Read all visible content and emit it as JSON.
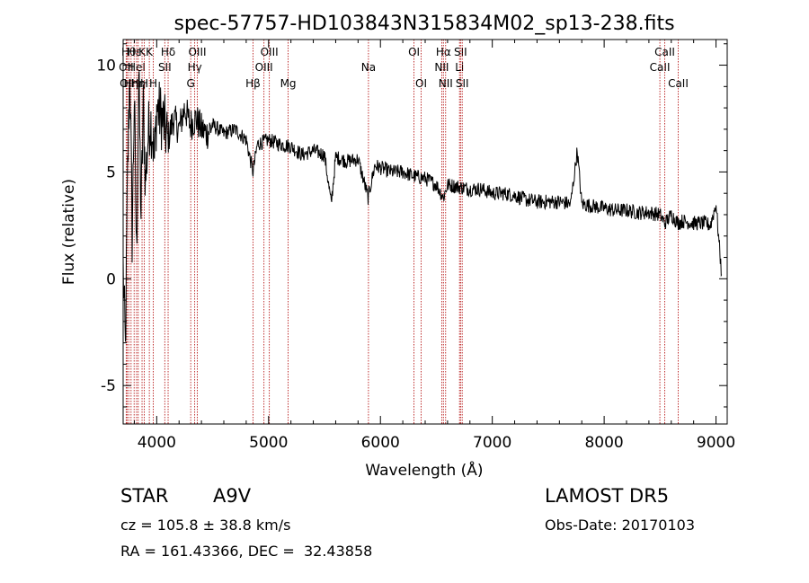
{
  "chart_data": {
    "type": "line",
    "title": "spec-57757-HD103843N315834M02_sp13-238.fits",
    "xlabel": "Wavelength (Å)",
    "ylabel": "Flux (relative)",
    "xlim": [
      3700,
      9100
    ],
    "ylim": [
      -6.8,
      11.2
    ],
    "xticks": [
      4000,
      5000,
      6000,
      7000,
      8000,
      9000
    ],
    "yticks": [
      -5,
      0,
      5,
      10
    ],
    "grid": false,
    "line_color": "#000000",
    "marker_line_color": "#b00000",
    "series": [
      {
        "x": [
          3700,
          3720,
          3740,
          3760,
          3780,
          3800,
          3820,
          3840,
          3860,
          3880,
          3900,
          3920,
          3940,
          3960,
          3980,
          4000,
          4050,
          4100,
          4150,
          4200,
          4250,
          4300,
          4350,
          4400,
          4450,
          4500,
          4600,
          4700,
          4800,
          4861,
          4900,
          5000,
          5100,
          5200,
          5300,
          5400,
          5500,
          5560,
          5600,
          5700,
          5800,
          5890,
          5950,
          6000,
          6100,
          6200,
          6300,
          6400,
          6500,
          6563,
          6600,
          6700,
          6800,
          6900,
          7000,
          7100,
          7200,
          7300,
          7400,
          7500,
          7600,
          7700,
          7760,
          7800,
          7900,
          8000,
          8100,
          8200,
          8300,
          8400,
          8500,
          8542,
          8600,
          8662,
          8700,
          8800,
          8900,
          8950,
          9000,
          9050
        ],
        "y": [
          0.5,
          -3.5,
          5.0,
          10.0,
          2.0,
          8.5,
          1.0,
          9.5,
          3.0,
          8.0,
          4.5,
          6.5,
          7.5,
          7.0,
          5.5,
          8.0,
          7.5,
          6.5,
          7.5,
          7.0,
          8.0,
          7.2,
          7.5,
          7.0,
          6.8,
          7.2,
          6.8,
          7.0,
          6.5,
          5.0,
          6.3,
          6.5,
          6.3,
          6.2,
          5.8,
          6.0,
          5.8,
          3.5,
          5.7,
          5.5,
          5.6,
          3.8,
          5.3,
          5.2,
          5.0,
          5.0,
          4.8,
          4.7,
          4.4,
          3.8,
          4.4,
          4.3,
          4.2,
          4.2,
          4.0,
          4.0,
          3.9,
          3.7,
          3.6,
          3.6,
          3.6,
          3.5,
          6.0,
          3.5,
          3.4,
          3.3,
          3.2,
          3.2,
          3.1,
          3.1,
          3.0,
          2.6,
          3.0,
          2.6,
          2.7,
          2.6,
          2.6,
          2.5,
          3.5,
          0.2
        ]
      }
    ],
    "lines": [
      {
        "x": 3727,
        "label": "OII",
        "row": 2
      },
      {
        "x": 3735,
        "label": "OII",
        "row": 3
      },
      {
        "x": 3750,
        "label": "Hθ",
        "row": 1
      },
      {
        "x": 3771,
        "label": "Hη",
        "row": 3
      },
      {
        "x": 3798,
        "label": "Hε",
        "row": 1
      },
      {
        "x": 3820,
        "label": "HeI",
        "row": 2
      },
      {
        "x": 3835,
        "label": "Hη",
        "row": 3
      },
      {
        "x": 3869,
        "label": "K",
        "row": 1
      },
      {
        "x": 3889,
        "label": "H",
        "row": 3
      },
      {
        "x": 3934,
        "label": "K",
        "row": 1
      },
      {
        "x": 3969,
        "label": "H",
        "row": 3
      },
      {
        "x": 4072,
        "label": "SII",
        "row": 2
      },
      {
        "x": 4102,
        "label": "Hδ",
        "row": 1
      },
      {
        "x": 4304,
        "label": "G",
        "row": 3
      },
      {
        "x": 4340,
        "label": "Hγ",
        "row": 2
      },
      {
        "x": 4363,
        "label": "OIII",
        "row": 1
      },
      {
        "x": 4861,
        "label": "Hβ",
        "row": 3
      },
      {
        "x": 4959,
        "label": "OIII",
        "row": 2
      },
      {
        "x": 5007,
        "label": "OIII",
        "row": 1
      },
      {
        "x": 5175,
        "label": "Mg",
        "row": 3
      },
      {
        "x": 5893,
        "label": "Na",
        "row": 2
      },
      {
        "x": 6300,
        "label": "OI",
        "row": 1
      },
      {
        "x": 6364,
        "label": "OI",
        "row": 3
      },
      {
        "x": 6548,
        "label": "NII",
        "row": 2
      },
      {
        "x": 6563,
        "label": "Hα",
        "row": 1
      },
      {
        "x": 6583,
        "label": "NII",
        "row": 3
      },
      {
        "x": 6707,
        "label": "Li",
        "row": 2
      },
      {
        "x": 6716,
        "label": "SII",
        "row": 1
      },
      {
        "x": 6731,
        "label": "SII",
        "row": 3
      },
      {
        "x": 8498,
        "label": "CaII",
        "row": 2
      },
      {
        "x": 8542,
        "label": "CaII",
        "row": 1
      },
      {
        "x": 8662,
        "label": "CaII",
        "row": 3
      }
    ]
  },
  "info": {
    "object_class": "STAR",
    "subclass": "A9V",
    "survey": "LAMOST DR5",
    "redshift": "cz = 105.8 ± 38.8 km/s",
    "obs_date": "Obs-Date: 20170103",
    "coords": "RA = 161.43366, DEC =  32.43858"
  }
}
